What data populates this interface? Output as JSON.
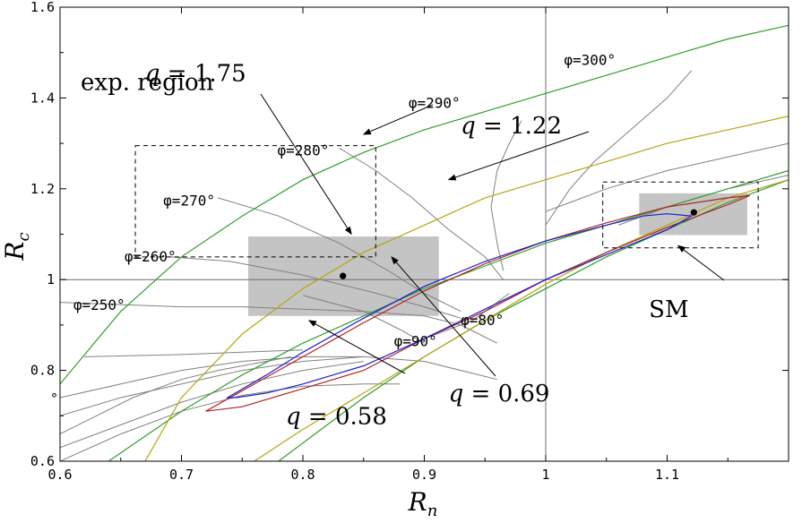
{
  "chart_data": {
    "type": "line",
    "title": "",
    "xlabel": "R",
    "xlabel_sub": "n",
    "ylabel": "R",
    "ylabel_sub": "c",
    "xlim": [
      0.6,
      1.2
    ],
    "ylim": [
      0.6,
      1.6
    ],
    "x_ticks": [
      0.6,
      0.7,
      0.8,
      0.9,
      1.0,
      1.1
    ],
    "x_tick_labels": [
      "0.6",
      "0.7",
      "0.8",
      "0.9",
      "1",
      "1.1"
    ],
    "y_ticks": [
      0.6,
      0.8,
      1.0,
      1.2,
      1.4,
      1.6
    ],
    "y_tick_labels": [
      "0.6",
      "0.8",
      "1",
      "1.2",
      "1.4",
      "1.6"
    ],
    "grid": false,
    "reference_lines": {
      "x": 1.0,
      "y": 1.0
    },
    "colors": {
      "q175": "#2ca02c",
      "q122": "#b8a414",
      "q069": "#b22222",
      "q058": "#1f1fcc",
      "phi": "#808080",
      "region": "#c4c4c4"
    },
    "q_curves": [
      {
        "q": 1.75,
        "color": "#2ca02c",
        "points": [
          [
            0.6,
            0.77
          ],
          [
            0.65,
            0.93
          ],
          [
            0.7,
            1.05
          ],
          [
            0.75,
            1.14
          ],
          [
            0.8,
            1.22
          ],
          [
            0.85,
            1.28
          ],
          [
            0.9,
            1.33
          ],
          [
            0.95,
            1.37
          ],
          [
            1.0,
            1.41
          ],
          [
            1.05,
            1.45
          ],
          [
            1.1,
            1.49
          ],
          [
            1.15,
            1.53
          ],
          [
            1.2,
            1.56
          ]
        ]
      },
      {
        "q": 1.75,
        "color": "#2ca02c",
        "points": [
          [
            0.64,
            0.6
          ],
          [
            0.7,
            0.71
          ],
          [
            0.75,
            0.79
          ],
          [
            0.8,
            0.86
          ],
          [
            0.85,
            0.92
          ],
          [
            0.9,
            0.98
          ],
          [
            0.95,
            1.03
          ],
          [
            1.0,
            1.08
          ],
          [
            1.05,
            1.12
          ],
          [
            1.1,
            1.16
          ],
          [
            1.15,
            1.2
          ],
          [
            1.2,
            1.24
          ]
        ]
      },
      {
        "q": 1.75,
        "color": "#2ca02c",
        "points": [
          [
            0.78,
            0.6
          ],
          [
            0.85,
            0.74
          ],
          [
            0.9,
            0.83
          ],
          [
            0.95,
            0.91
          ],
          [
            1.0,
            0.98
          ],
          [
            1.05,
            1.05
          ],
          [
            1.1,
            1.11
          ],
          [
            1.15,
            1.17
          ],
          [
            1.2,
            1.22
          ]
        ]
      },
      {
        "q": 1.22,
        "color": "#b8a414",
        "points": [
          [
            0.67,
            0.6
          ],
          [
            0.7,
            0.74
          ],
          [
            0.75,
            0.88
          ],
          [
            0.8,
            0.98
          ],
          [
            0.85,
            1.06
          ],
          [
            0.9,
            1.12
          ],
          [
            0.95,
            1.18
          ],
          [
            1.0,
            1.22
          ],
          [
            1.05,
            1.26
          ],
          [
            1.1,
            1.3
          ],
          [
            1.15,
            1.33
          ],
          [
            1.2,
            1.36
          ]
        ]
      },
      {
        "q": 1.22,
        "color": "#b8a414",
        "points": [
          [
            0.76,
            0.6
          ],
          [
            0.8,
            0.67
          ],
          [
            0.85,
            0.75
          ],
          [
            0.9,
            0.83
          ],
          [
            0.95,
            0.91
          ],
          [
            1.0,
            0.99
          ],
          [
            1.05,
            1.06
          ],
          [
            1.1,
            1.12
          ],
          [
            1.15,
            1.18
          ],
          [
            1.2,
            1.22
          ]
        ]
      },
      {
        "q": 0.69,
        "color": "#b22222",
        "closed": true,
        "points": [
          [
            0.72,
            0.71
          ],
          [
            0.75,
            0.755
          ],
          [
            0.8,
            0.83
          ],
          [
            0.85,
            0.905
          ],
          [
            0.9,
            0.975
          ],
          [
            0.95,
            1.035
          ],
          [
            1.0,
            1.085
          ],
          [
            1.05,
            1.125
          ],
          [
            1.1,
            1.16
          ],
          [
            1.15,
            1.18
          ],
          [
            1.168,
            1.185
          ],
          [
            1.15,
            1.165
          ],
          [
            1.1,
            1.115
          ],
          [
            1.05,
            1.06
          ],
          [
            1.0,
            1.0
          ],
          [
            0.95,
            0.93
          ],
          [
            0.9,
            0.87
          ],
          [
            0.85,
            0.8
          ],
          [
            0.8,
            0.76
          ],
          [
            0.75,
            0.72
          ],
          [
            0.72,
            0.71
          ]
        ]
      },
      {
        "q": 0.58,
        "color": "#1f1fcc",
        "closed": true,
        "points": [
          [
            0.738,
            0.74
          ],
          [
            0.77,
            0.79
          ],
          [
            0.8,
            0.84
          ],
          [
            0.85,
            0.915
          ],
          [
            0.9,
            0.985
          ],
          [
            0.95,
            1.04
          ],
          [
            1.0,
            1.085
          ],
          [
            1.05,
            1.12
          ],
          [
            1.08,
            1.14
          ],
          [
            1.1,
            1.145
          ],
          [
            1.12,
            1.14
          ],
          [
            1.1,
            1.11
          ],
          [
            1.05,
            1.055
          ],
          [
            1.0,
            1.0
          ],
          [
            0.95,
            0.935
          ],
          [
            0.9,
            0.87
          ],
          [
            0.85,
            0.81
          ],
          [
            0.8,
            0.77
          ],
          [
            0.77,
            0.75
          ],
          [
            0.745,
            0.74
          ],
          [
            0.738,
            0.74
          ]
        ]
      }
    ],
    "phi_curves": [
      {
        "label": "φ=250°",
        "points": [
          [
            0.6,
            0.74
          ],
          [
            0.65,
            0.77
          ],
          [
            0.7,
            0.8
          ],
          [
            0.75,
            0.82
          ],
          [
            0.8,
            0.83
          ],
          [
            0.85,
            0.83
          ],
          [
            0.9,
            0.82
          ],
          [
            0.96,
            0.78
          ]
        ]
      },
      {
        "label": "φ=260°",
        "points": [
          [
            0.6,
            0.66
          ],
          [
            0.63,
            0.7
          ],
          [
            0.66,
            0.74
          ],
          [
            0.7,
            0.78
          ],
          [
            0.73,
            0.8
          ],
          [
            0.76,
            0.815
          ],
          [
            0.79,
            0.83
          ]
        ]
      },
      {
        "label": "φ=270°",
        "points": [
          [
            0.6,
            0.7
          ],
          [
            0.65,
            0.74
          ],
          [
            0.7,
            0.77
          ],
          [
            0.75,
            0.8
          ],
          [
            0.8,
            0.82
          ],
          [
            0.85,
            0.83
          ]
        ]
      },
      {
        "label": "φ=280°",
        "points": [
          [
            0.6,
            0.6
          ],
          [
            0.65,
            0.66
          ],
          [
            0.7,
            0.71
          ],
          [
            0.75,
            0.745
          ],
          [
            0.8,
            0.765
          ],
          [
            0.85,
            0.77
          ],
          [
            0.88,
            0.77
          ]
        ]
      },
      {
        "label": "φ=290°",
        "points": [
          [
            0.6,
            0.63
          ],
          [
            0.65,
            0.68
          ],
          [
            0.7,
            0.73
          ],
          [
            0.75,
            0.77
          ],
          [
            0.8,
            0.8
          ],
          [
            0.85,
            0.82
          ]
        ]
      },
      {
        "label": "φ=300°",
        "points": [
          [
            0.62,
            0.83
          ],
          [
            0.7,
            0.835
          ],
          [
            0.75,
            0.84
          ],
          [
            0.8,
            0.845
          ]
        ]
      },
      {
        "label": "",
        "points": [
          [
            0.6,
            0.95
          ],
          [
            0.65,
            0.945
          ],
          [
            0.7,
            0.94
          ],
          [
            0.75,
            0.94
          ],
          [
            0.8,
            0.935
          ],
          [
            0.85,
            0.93
          ],
          [
            0.9,
            0.92
          ],
          [
            0.93,
            0.9
          ],
          [
            0.96,
            0.86
          ]
        ]
      },
      {
        "label": "",
        "points": [
          [
            0.69,
            1.05
          ],
          [
            0.74,
            1.04
          ],
          [
            0.8,
            1.01
          ],
          [
            0.86,
            0.97
          ],
          [
            0.9,
            0.94
          ],
          [
            0.93,
            0.915
          ]
        ]
      },
      {
        "label": "",
        "points": [
          [
            0.73,
            1.18
          ],
          [
            0.78,
            1.14
          ],
          [
            0.83,
            1.08
          ],
          [
            0.87,
            1.02
          ],
          [
            0.9,
            0.97
          ],
          [
            0.93,
            0.93
          ]
        ]
      },
      {
        "label": "",
        "points": [
          [
            0.83,
            1.29
          ],
          [
            0.86,
            1.24
          ],
          [
            0.89,
            1.18
          ],
          [
            0.92,
            1.11
          ],
          [
            0.95,
            1.05
          ],
          [
            0.965,
            1.0
          ]
        ]
      },
      {
        "label": "",
        "points": [
          [
            0.98,
            1.35
          ],
          [
            0.97,
            1.3
          ],
          [
            0.96,
            1.24
          ],
          [
            0.955,
            1.16
          ],
          [
            0.96,
            1.08
          ],
          [
            0.965,
            1.02
          ]
        ]
      },
      {
        "label": "",
        "points": [
          [
            1.12,
            1.46
          ],
          [
            1.1,
            1.4
          ],
          [
            1.07,
            1.33
          ],
          [
            1.04,
            1.26
          ],
          [
            1.02,
            1.2
          ],
          [
            1.0,
            1.12
          ]
        ]
      },
      {
        "label": "",
        "points": [
          [
            0.8,
            0.965
          ],
          [
            0.85,
            0.93
          ],
          [
            0.88,
            0.89
          ],
          [
            0.9,
            0.86
          ]
        ]
      },
      {
        "label": "",
        "points": [
          [
            0.9,
            0.87
          ],
          [
            0.94,
            0.91
          ],
          [
            0.96,
            0.95
          ],
          [
            0.97,
            0.97
          ]
        ]
      },
      {
        "label": "",
        "points": [
          [
            1.0,
            1.15
          ],
          [
            1.05,
            1.2
          ],
          [
            1.1,
            1.24
          ],
          [
            1.15,
            1.27
          ],
          [
            1.2,
            1.3
          ]
        ]
      },
      {
        "label": "",
        "points": [
          [
            1.06,
            1.12
          ],
          [
            1.1,
            1.16
          ],
          [
            1.15,
            1.2
          ],
          [
            1.2,
            1.23
          ]
        ]
      }
    ],
    "regions": [
      {
        "name": "exp. region",
        "x": [
          0.755,
          0.912
        ],
        "y": [
          0.92,
          1.095
        ]
      },
      {
        "name": "",
        "x": [
          1.077,
          1.166
        ],
        "y": [
          1.098,
          1.19
        ]
      }
    ],
    "dashed_boxes": [
      {
        "x": [
          0.662,
          0.86
        ],
        "y": [
          1.05,
          1.295
        ]
      },
      {
        "x": [
          1.047,
          1.175
        ],
        "y": [
          1.07,
          1.215
        ]
      }
    ],
    "points": [
      {
        "name": "",
        "x": 0.833,
        "y": 1.008
      },
      {
        "name": "SM",
        "x": 1.122,
        "y": 1.148
      }
    ],
    "left_marker": {
      "label": "°",
      "y": 0.74
    },
    "annotations": [
      {
        "pre": "",
        "italic": "q",
        "post": " = 1.75",
        "x": 0.67,
        "y": 1.455,
        "arrow_to": [
          0.85,
          1.32
        ]
      },
      {
        "pre": "",
        "italic": "q",
        "post": " = 1.22",
        "x": 0.93,
        "y": 1.34,
        "arrow_to": [
          0.92,
          1.22
        ]
      },
      {
        "pre": "exp. region",
        "italic": "",
        "post": "",
        "x": 0.617,
        "y": 1.435,
        "arrow_to": [
          0.84,
          1.1
        ]
      },
      {
        "pre": "",
        "italic": "q",
        "post": " = 0.58",
        "x": 0.786,
        "y": 0.7,
        "arrow_to": [
          0.805,
          0.91
        ]
      },
      {
        "pre": "",
        "italic": "q",
        "post": " = 0.69",
        "x": 0.92,
        "y": 0.75,
        "arrow_to": [
          0.873,
          1.05
        ]
      },
      {
        "pre": "SM",
        "italic": "",
        "post": "",
        "x": 1.085,
        "y": 0.935,
        "arrow_to": [
          1.109,
          1.075
        ]
      }
    ],
    "phi_labels": [
      {
        "text": "φ=250°",
        "x": 0.611,
        "y": 0.945
      },
      {
        "text": "φ=260°",
        "x": 0.653,
        "y": 1.052
      },
      {
        "text": "φ=270°",
        "x": 0.685,
        "y": 1.175
      },
      {
        "text": "φ=280°",
        "x": 0.779,
        "y": 1.285
      },
      {
        "text": "φ=290°",
        "x": 0.887,
        "y": 1.39
      },
      {
        "text": "φ=300°",
        "x": 1.015,
        "y": 1.485
      },
      {
        "text": "φ=80°",
        "x": 0.93,
        "y": 0.912
      },
      {
        "text": "φ=90°",
        "x": 0.875,
        "y": 0.865
      }
    ]
  }
}
